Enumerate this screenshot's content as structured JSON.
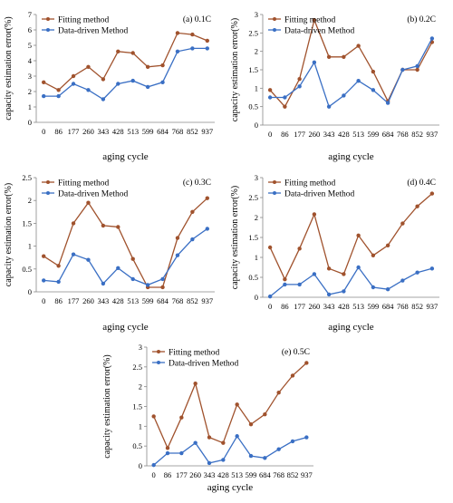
{
  "chart_data": [
    {
      "type": "line",
      "panel_label": "(a) 0.1C",
      "xlabel": "aging cycle",
      "ylabel": "capacity estimation error(%)",
      "categories": [
        "0",
        "86",
        "177",
        "260",
        "343",
        "428",
        "513",
        "599",
        "684",
        "768",
        "852",
        "937"
      ],
      "ylim": [
        0,
        7
      ],
      "yticks": [
        0,
        1,
        2,
        3,
        4,
        5,
        6,
        7
      ],
      "legend_position": "top",
      "series": [
        {
          "name": "Fitting method",
          "color": "#a0522d",
          "values": [
            2.6,
            2.1,
            3.0,
            3.6,
            2.8,
            4.6,
            4.5,
            3.6,
            3.7,
            5.8,
            5.7,
            5.3
          ]
        },
        {
          "name": "Data-driven Method",
          "color": "#3a6fc4",
          "values": [
            1.7,
            1.7,
            2.5,
            2.1,
            1.5,
            2.5,
            2.7,
            2.3,
            2.6,
            4.6,
            4.8,
            4.8
          ]
        }
      ]
    },
    {
      "type": "line",
      "panel_label": "(b) 0.2C",
      "xlabel": "aging cycle",
      "ylabel": "capacity estimation error(%)",
      "categories": [
        "0",
        "86",
        "177",
        "260",
        "343",
        "428",
        "513",
        "599",
        "684",
        "768",
        "852",
        "937"
      ],
      "ylim": [
        0,
        3
      ],
      "yticks": [
        0,
        0.5,
        1,
        1.5,
        2,
        2.5,
        3
      ],
      "legend_position": "top",
      "series": [
        {
          "name": "Fitting method",
          "color": "#a0522d",
          "values": [
            0.95,
            0.5,
            1.25,
            2.85,
            1.85,
            1.85,
            2.15,
            1.45,
            0.65,
            1.5,
            1.5,
            2.25
          ]
        },
        {
          "name": "Data-driven Method",
          "color": "#3a6fc4",
          "values": [
            0.75,
            0.75,
            1.05,
            1.7,
            0.5,
            0.8,
            1.2,
            0.95,
            0.6,
            1.5,
            1.6,
            2.35
          ]
        }
      ]
    },
    {
      "type": "line",
      "panel_label": "(c) 0.3C",
      "xlabel": "aging cycle",
      "ylabel": "capacity estimation error(%)",
      "categories": [
        "0",
        "86",
        "177",
        "260",
        "343",
        "428",
        "513",
        "599",
        "684",
        "768",
        "852",
        "937"
      ],
      "ylim": [
        0,
        2.5
      ],
      "yticks": [
        0,
        0.5,
        1,
        1.5,
        2,
        2.5
      ],
      "legend_position": "top",
      "series": [
        {
          "name": "Fitting method",
          "color": "#a0522d",
          "values": [
            0.78,
            0.57,
            1.5,
            1.95,
            1.45,
            1.42,
            0.72,
            0.1,
            0.1,
            1.18,
            1.75,
            2.05
          ]
        },
        {
          "name": "Data-driven Method",
          "color": "#3a6fc4",
          "values": [
            0.25,
            0.22,
            0.82,
            0.7,
            0.18,
            0.52,
            0.28,
            0.15,
            0.28,
            0.8,
            1.15,
            1.38
          ]
        }
      ]
    },
    {
      "type": "line",
      "panel_label": "(d) 0.4C",
      "xlabel": "aging cycle",
      "ylabel": "capacity estimation error(%)",
      "categories": [
        "0",
        "86",
        "177",
        "260",
        "343",
        "428",
        "513",
        "599",
        "684",
        "768",
        "852",
        "937"
      ],
      "ylim": [
        0,
        3
      ],
      "yticks": [
        0,
        0.5,
        1,
        1.5,
        2,
        2.5,
        3
      ],
      "legend_position": "top",
      "series": [
        {
          "name": "Fitting method",
          "color": "#a0522d",
          "values": [
            1.25,
            0.45,
            1.22,
            2.08,
            0.72,
            0.58,
            1.55,
            1.05,
            1.3,
            1.85,
            2.28,
            2.6
          ]
        },
        {
          "name": "Data-driven Method",
          "color": "#3a6fc4",
          "values": [
            0.02,
            0.32,
            0.32,
            0.58,
            0.07,
            0.15,
            0.75,
            0.25,
            0.2,
            0.42,
            0.62,
            0.72
          ]
        }
      ]
    },
    {
      "type": "line",
      "panel_label": "(e) 0.5C",
      "xlabel": "aging cycle",
      "ylabel": "capacity estimation error(%)",
      "categories": [
        "0",
        "86",
        "177",
        "260",
        "343",
        "428",
        "513",
        "599",
        "684",
        "768",
        "852",
        "937"
      ],
      "ylim": [
        0,
        3
      ],
      "yticks": [
        0,
        0.5,
        1,
        1.5,
        2,
        2.5,
        3
      ],
      "legend_position": "top",
      "series": [
        {
          "name": "Fitting method",
          "color": "#a0522d",
          "values": [
            1.25,
            0.45,
            1.22,
            2.08,
            0.72,
            0.58,
            1.55,
            1.05,
            1.3,
            1.85,
            2.28,
            2.6
          ]
        },
        {
          "name": "Data-driven Method",
          "color": "#3a6fc4",
          "values": [
            0.02,
            0.32,
            0.32,
            0.58,
            0.07,
            0.15,
            0.75,
            0.25,
            0.2,
            0.42,
            0.62,
            0.72
          ]
        }
      ]
    }
  ]
}
